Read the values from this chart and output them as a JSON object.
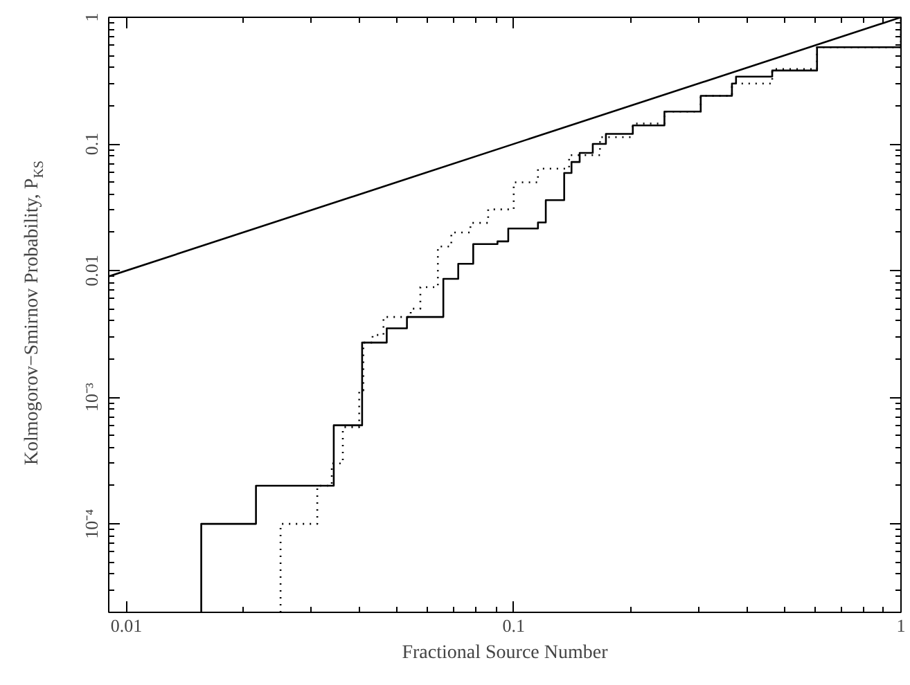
{
  "chart_data": {
    "type": "step",
    "xlabel": "Fractional Source Number",
    "ylabel": "Kolmogorov−Smirnov Probability, P$_{KS}$",
    "log": "xy",
    "grid": false,
    "marker": "none",
    "xlim": [
      0.009,
      1
    ],
    "ylim": [
      2e-05,
      1
    ],
    "xticks": [
      {
        "value": 0.01,
        "label": "0.01"
      },
      {
        "value": 0.1,
        "label": "0.1"
      },
      1
    ],
    "yticks": [
      {
        "value": 0.0001,
        "label": "10⁻⁴"
      },
      {
        "value": 0.001,
        "label": "10⁻³"
      },
      {
        "value": 0.01,
        "label": "0.01"
      },
      {
        "value": 0.1,
        "label": "0.1"
      },
      1
    ],
    "series": [
      {
        "type": "line",
        "color": "#000000",
        "line_style": "solid",
        "x": [
          0.009,
          1
        ],
        "values": [
          0.009,
          1
        ]
      },
      {
        "color": "#000000",
        "line_style": "solid",
        "x": [
          0.0156,
          0.0156,
          0.0216,
          0.0343,
          0.0406,
          0.047,
          0.053,
          0.0658,
          0.0719,
          0.0786,
          0.0908,
          0.0968,
          0.1155,
          0.121,
          0.135,
          0.141,
          0.148,
          0.16,
          0.173,
          0.203,
          0.245,
          0.304,
          0.366,
          0.375,
          0.465,
          0.607,
          1
        ],
        "values": [
          2e-05,
          0.0001,
          0.0002,
          0.0006,
          0.0027,
          0.0035,
          0.0043,
          0.0086,
          0.0113,
          0.0162,
          0.017,
          0.0215,
          0.024,
          0.036,
          0.059,
          0.072,
          0.085,
          0.1,
          0.12,
          0.14,
          0.18,
          0.24,
          0.3,
          0.34,
          0.38,
          0.58,
          1
        ]
      },
      {
        "color": "#000000",
        "line_style": "dotted",
        "x": [
          0.025,
          0.025,
          0.0311,
          0.0339,
          0.0362,
          0.0399,
          0.0409,
          0.0432,
          0.0461,
          0.0542,
          0.0574,
          0.0637,
          0.069,
          0.0773,
          0.0859,
          0.1,
          0.1155,
          0.139,
          0.167,
          0.203,
          0.245,
          0.304,
          0.366,
          0.465,
          0.607,
          1
        ],
        "values": [
          2e-05,
          0.0001,
          0.0002,
          0.0003,
          0.00058,
          0.00113,
          0.0027,
          0.0031,
          0.0043,
          0.005,
          0.0074,
          0.0155,
          0.02,
          0.0238,
          0.0304,
          0.0498,
          0.0638,
          0.0816,
          0.113,
          0.145,
          0.18,
          0.24,
          0.3,
          0.39,
          0.58,
          1
        ]
      }
    ]
  }
}
